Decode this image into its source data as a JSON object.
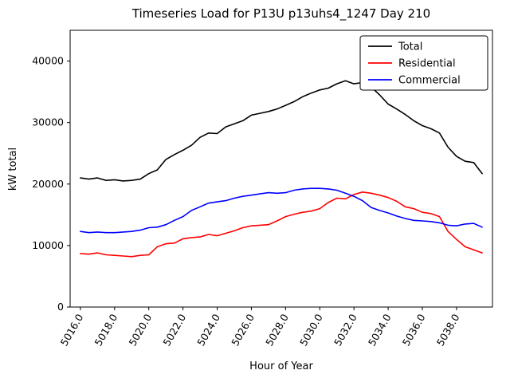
{
  "chart_data": {
    "type": "line",
    "title": "Timeseries Load for P13U p13uhs4_1247  Day 210",
    "xlabel": "Hour of Year",
    "ylabel": "kW total",
    "xlim": [
      5015.4,
      5040.1
    ],
    "ylim": [
      0,
      45000
    ],
    "grid": false,
    "legend_position": "upper right",
    "x_ticks": [
      5016,
      5018,
      5020,
      5022,
      5024,
      5026,
      5028,
      5030,
      5032,
      5034,
      5036,
      5038
    ],
    "x_tick_labels": [
      "5016.0",
      "5018.0",
      "5020.0",
      "5022.0",
      "5024.0",
      "5026.0",
      "5028.0",
      "5030.0",
      "5032.0",
      "5034.0",
      "5036.0",
      "5038.0"
    ],
    "y_ticks": [
      0,
      10000,
      20000,
      30000,
      40000
    ],
    "y_tick_labels": [
      "0",
      "10000",
      "20000",
      "30000",
      "40000"
    ],
    "x": [
      5016.0,
      5016.5,
      5017.0,
      5017.5,
      5018.0,
      5018.5,
      5019.0,
      5019.5,
      5020.0,
      5020.5,
      5021.0,
      5021.5,
      5022.0,
      5022.5,
      5023.0,
      5023.5,
      5024.0,
      5024.5,
      5025.0,
      5025.5,
      5026.0,
      5026.5,
      5027.0,
      5027.5,
      5028.0,
      5028.5,
      5029.0,
      5029.5,
      5030.0,
      5030.5,
      5031.0,
      5031.5,
      5032.0,
      5032.5,
      5033.0,
      5033.5,
      5034.0,
      5034.5,
      5035.0,
      5035.5,
      5036.0,
      5036.5,
      5037.0,
      5037.5,
      5038.0,
      5038.5,
      5039.0,
      5039.5
    ],
    "series": [
      {
        "name": "Total",
        "color": "#000000",
        "values": [
          21000,
          20800,
          21000,
          20600,
          20700,
          20500,
          20600,
          20800,
          21700,
          22300,
          24000,
          24800,
          25500,
          26300,
          27600,
          28300,
          28200,
          29300,
          29800,
          30300,
          31200,
          31500,
          31800,
          32200,
          32800,
          33400,
          34200,
          34800,
          35300,
          35600,
          36300,
          36800,
          36300,
          36500,
          35800,
          34500,
          33000,
          32200,
          31300,
          30300,
          29500,
          29000,
          28300,
          26000,
          24500,
          23700,
          23500,
          21700
        ]
      },
      {
        "name": "Residential",
        "color": "#ff0000",
        "values": [
          8700,
          8600,
          8800,
          8500,
          8400,
          8300,
          8200,
          8400,
          8500,
          9800,
          10300,
          10400,
          11100,
          11300,
          11400,
          11800,
          11600,
          12000,
          12400,
          12900,
          13200,
          13300,
          13400,
          14000,
          14700,
          15100,
          15400,
          15600,
          16000,
          17000,
          17700,
          17600,
          18300,
          18700,
          18500,
          18200,
          17800,
          17200,
          16300,
          16000,
          15400,
          15200,
          14700,
          12300,
          11000,
          9800,
          9300,
          8800
        ]
      },
      {
        "name": "Commercial",
        "color": "#0000ff",
        "values": [
          12300,
          12100,
          12200,
          12100,
          12100,
          12200,
          12300,
          12500,
          12900,
          13000,
          13400,
          14100,
          14700,
          15700,
          16300,
          16900,
          17100,
          17300,
          17700,
          18000,
          18200,
          18400,
          18600,
          18500,
          18600,
          19000,
          19200,
          19300,
          19300,
          19200,
          19000,
          18500,
          18000,
          17300,
          16200,
          15700,
          15300,
          14800,
          14400,
          14100,
          14000,
          13900,
          13700,
          13300,
          13200,
          13500,
          13600,
          13000
        ]
      }
    ]
  }
}
